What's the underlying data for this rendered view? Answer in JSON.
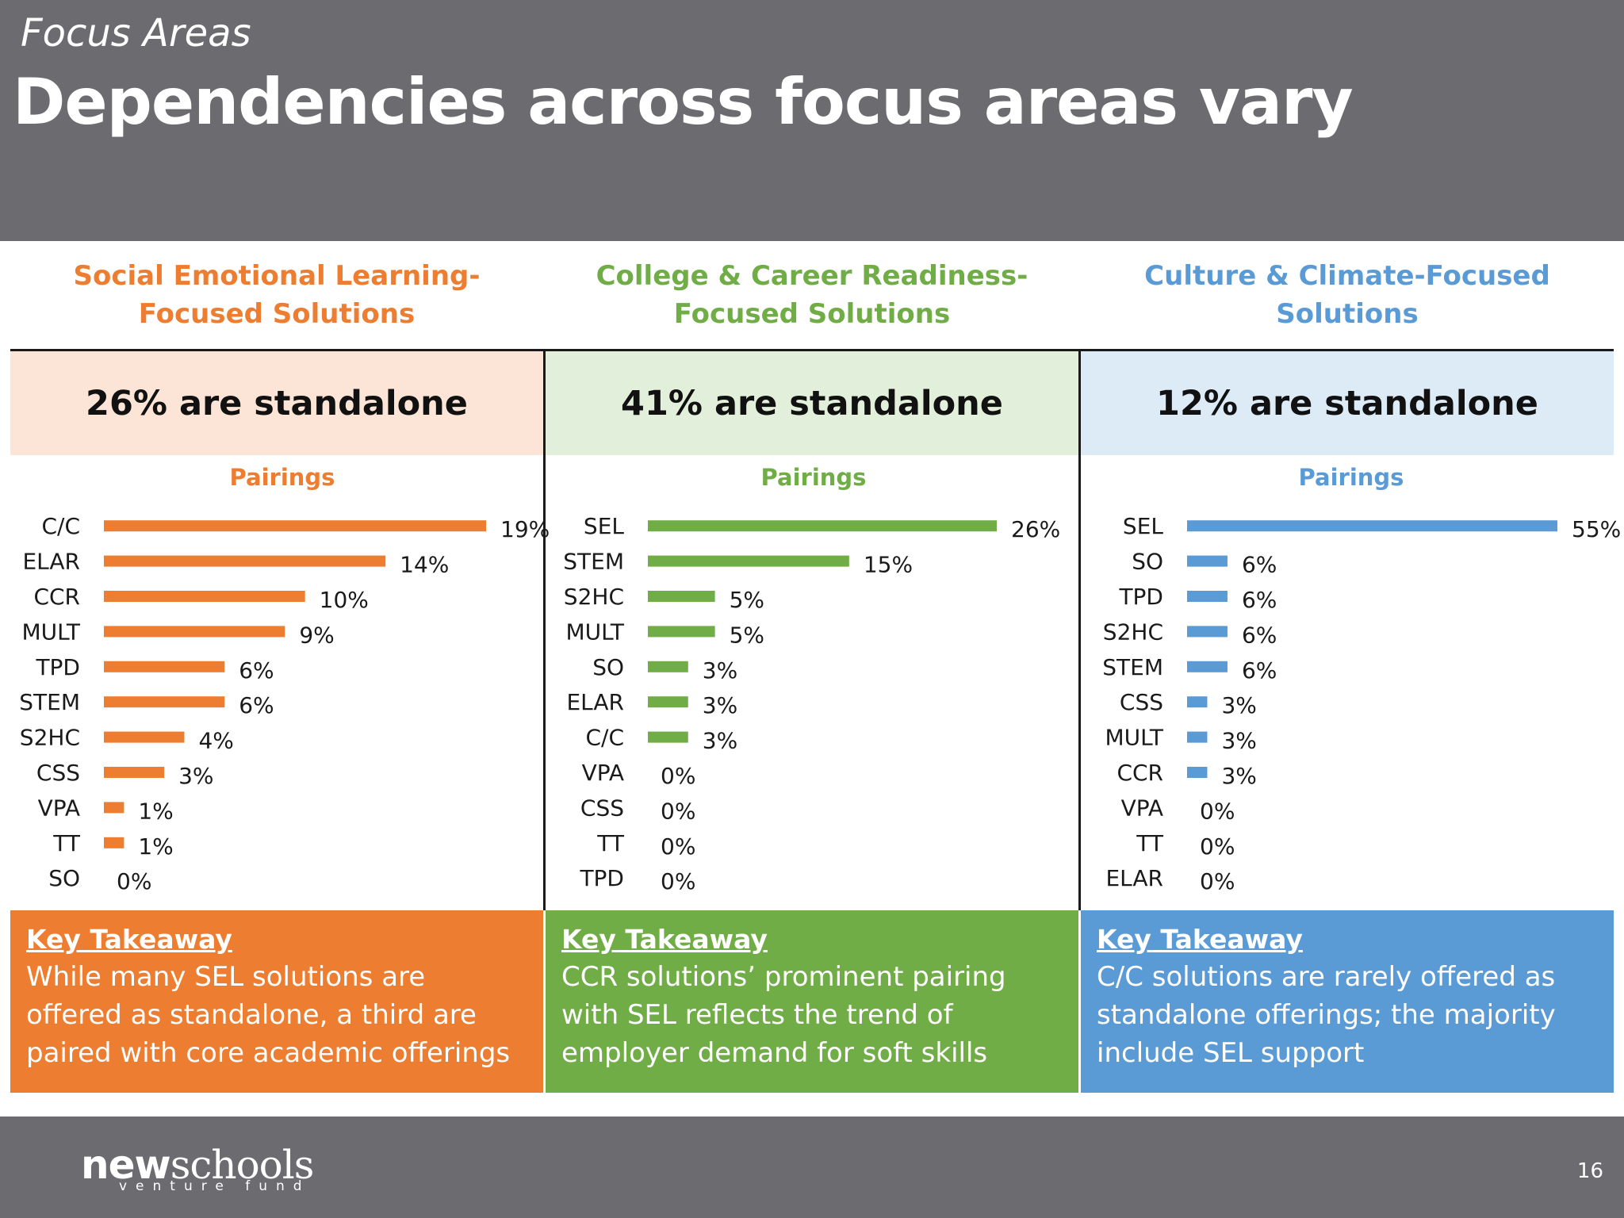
{
  "header": {
    "kicker": "Focus Areas",
    "title": "Dependencies across focus areas vary"
  },
  "colors": {
    "sel": "#ed7d31",
    "ccr": "#70ad47",
    "cc": "#5b9bd5",
    "sel_light": "#fce4d6",
    "ccr_light": "#e2efda",
    "cc_light": "#ddebf7",
    "header_gray": "#6b6b70"
  },
  "columns": [
    {
      "heading": "Social Emotional Learning-Focused Solutions",
      "standalone": "26% are standalone",
      "pairings_label": "Pairings",
      "takeaway_label": "Key Takeaway",
      "takeaway_text": "While many SEL solutions are offered as standalone, a third are paired with core academic offerings"
    },
    {
      "heading": "College & Career Readiness-Focused Solutions",
      "standalone": "41% are standalone",
      "pairings_label": "Pairings",
      "takeaway_label": "Key Takeaway",
      "takeaway_text": "CCR solutions’ prominent pairing with SEL reflects the trend of employer demand for soft skills"
    },
    {
      "heading": "Culture & Climate-Focused Solutions",
      "standalone": "12% are standalone",
      "pairings_label": "Pairings",
      "takeaway_label": "Key Takeaway",
      "takeaway_text": "C/C solutions are rarely offered as standalone offerings; the majority include SEL support"
    }
  ],
  "chart_data": [
    {
      "type": "bar",
      "orientation": "horizontal",
      "title": "Pairings",
      "categories": [
        "C/C",
        "ELAR",
        "CCR",
        "MULT",
        "TPD",
        "STEM",
        "S2HC",
        "CSS",
        "VPA",
        "TT",
        "SO"
      ],
      "values": [
        19,
        14,
        10,
        9,
        6,
        6,
        4,
        3,
        1,
        1,
        0
      ],
      "labels": [
        "19%",
        "14%",
        "10%",
        "9%",
        "6%",
        "6%",
        "4%",
        "3%",
        "1%",
        "1%",
        "0%"
      ],
      "color": "#ed7d31"
    },
    {
      "type": "bar",
      "orientation": "horizontal",
      "title": "Pairings",
      "categories": [
        "SEL",
        "STEM",
        "S2HC",
        "MULT",
        "SO",
        "ELAR",
        "C/C",
        "VPA",
        "CSS",
        "TT",
        "TPD"
      ],
      "values": [
        26,
        15,
        5,
        5,
        3,
        3,
        3,
        0,
        0,
        0,
        0
      ],
      "labels": [
        "26%",
        "15%",
        "5%",
        "5%",
        "3%",
        "3%",
        "3%",
        "0%",
        "0%",
        "0%",
        "0%"
      ],
      "color": "#70ad47"
    },
    {
      "type": "bar",
      "orientation": "horizontal",
      "title": "Pairings",
      "categories": [
        "SEL",
        "SO",
        "TPD",
        "S2HC",
        "STEM",
        "CSS",
        "MULT",
        "CCR",
        "VPA",
        "TT",
        "ELAR"
      ],
      "values": [
        55,
        6,
        6,
        6,
        6,
        3,
        3,
        3,
        0,
        0,
        0
      ],
      "labels": [
        "55%",
        "6%",
        "6%",
        "6%",
        "6%",
        "3%",
        "3%",
        "3%",
        "0%",
        "0%",
        "0%"
      ],
      "color": "#5b9bd5"
    }
  ],
  "footer": {
    "logo_bold": "new",
    "logo_rest": "schools",
    "logo_sub": "venture fund",
    "page_number": "16"
  }
}
